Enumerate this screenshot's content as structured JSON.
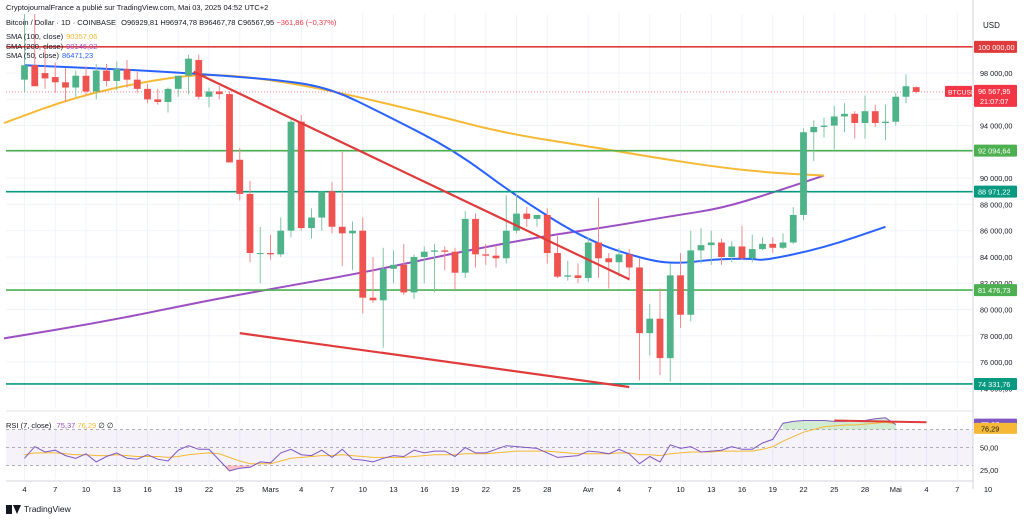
{
  "header": {
    "attribution": "CryptojournalFrance a publié sur TradingView.com, Mai 03, 2025 04:52 UTC+2",
    "symbol_line": "Bitcoin / Dollar · 1D · COINBASE",
    "ohlc": {
      "o": "O96929,81",
      "h": "H96974,78",
      "b": "B96467,78",
      "c": "C96567,95",
      "chg": "−361,86 (−0,37%)"
    }
  },
  "legend": [
    {
      "label": "SMA (100, close)",
      "value": "90357,06",
      "color": "#f5b935"
    },
    {
      "label": "SMA (200, close)",
      "value": "90146,02",
      "color": "#9c4fc3"
    },
    {
      "label": "SMA (50, close)",
      "value": "86471,23",
      "color": "#2962ff"
    }
  ],
  "rsi_legend": {
    "label": "RSI (7, close)",
    "value1": "75,37",
    "value2": "76,29",
    "value3": "∅",
    "value4": "∅"
  },
  "footer": {
    "brand": "TradingView"
  },
  "colors": {
    "up": "#26a69a",
    "upFill": "#4fb38a",
    "down": "#ef5350",
    "sma50": "#2962ff",
    "sma100": "#f5b935",
    "sma200": "#9c4fc3",
    "resistance": "#e03b3b",
    "support": "#4caf50",
    "support2": "#089981"
  },
  "chart_data": {
    "type": "candlestick",
    "currency": "USD",
    "ylim": [
      72500,
      102500
    ],
    "yticks": [
      74000,
      76000,
      78000,
      80000,
      82000,
      84000,
      86000,
      88000,
      90000,
      92000,
      94000,
      96000,
      98000
    ],
    "ytick_labels": [
      "74 000,00",
      "76 000,00",
      "78 000,00",
      "80 000,00",
      "82 000,00",
      "84 000,00",
      "86 000,00",
      "88 000,00",
      "90 000,00",
      "92 000,00",
      "94 000,00",
      "96 000,00",
      "98 000,00"
    ],
    "xticks": [
      {
        "label": "4",
        "i": 0
      },
      {
        "label": "7",
        "i": 3
      },
      {
        "label": "10",
        "i": 6
      },
      {
        "label": "13",
        "i": 9
      },
      {
        "label": "16",
        "i": 12
      },
      {
        "label": "19",
        "i": 15
      },
      {
        "label": "22",
        "i": 18
      },
      {
        "label": "25",
        "i": 21
      },
      {
        "label": "Mars",
        "i": 24
      },
      {
        "label": "4",
        "i": 27
      },
      {
        "label": "7",
        "i": 30
      },
      {
        "label": "10",
        "i": 33
      },
      {
        "label": "13",
        "i": 36
      },
      {
        "label": "16",
        "i": 39
      },
      {
        "label": "19",
        "i": 42
      },
      {
        "label": "22",
        "i": 45
      },
      {
        "label": "25",
        "i": 48
      },
      {
        "label": "28",
        "i": 51
      },
      {
        "label": "Avr",
        "i": 55
      },
      {
        "label": "4",
        "i": 58
      },
      {
        "label": "7",
        "i": 61
      },
      {
        "label": "10",
        "i": 64
      },
      {
        "label": "13",
        "i": 67
      },
      {
        "label": "16",
        "i": 70
      },
      {
        "label": "19",
        "i": 73
      },
      {
        "label": "22",
        "i": 76
      },
      {
        "label": "25",
        "i": 79
      },
      {
        "label": "28",
        "i": 82
      },
      {
        "label": "Mai",
        "i": 85
      },
      {
        "label": "4",
        "i": 88
      },
      {
        "label": "7",
        "i": 91
      },
      {
        "label": "10",
        "i": 94
      }
    ],
    "candles": [
      [
        97500,
        102500,
        96500,
        98600
      ],
      [
        98600,
        102500,
        97000,
        97000
      ],
      [
        98000,
        99800,
        96800,
        97600
      ],
      [
        97700,
        98800,
        96500,
        97300
      ],
      [
        97300,
        98400,
        95800,
        96900
      ],
      [
        96900,
        98200,
        96200,
        97800
      ],
      [
        97800,
        98500,
        96300,
        96600
      ],
      [
        96600,
        98700,
        96000,
        98200
      ],
      [
        98200,
        98700,
        97000,
        97400
      ],
      [
        97400,
        98900,
        96700,
        98300
      ],
      [
        98300,
        99000,
        96900,
        97500
      ],
      [
        97500,
        98100,
        96500,
        96800
      ],
      [
        96800,
        97200,
        95700,
        96000
      ],
      [
        96000,
        96800,
        95600,
        95800
      ],
      [
        95800,
        96900,
        95000,
        96800
      ],
      [
        96800,
        97800,
        96200,
        97800
      ],
      [
        97800,
        99400,
        96400,
        99100
      ],
      [
        99000,
        99400,
        96000,
        96200
      ],
      [
        96200,
        96900,
        95400,
        96600
      ],
      [
        96600,
        97000,
        96000,
        96400
      ],
      [
        96400,
        96600,
        91500,
        91200
      ],
      [
        91400,
        92300,
        88300,
        88800
      ],
      [
        88800,
        89800,
        83600,
        84300
      ],
      [
        84300,
        86300,
        82000,
        84300
      ],
      [
        84300,
        85700,
        83800,
        84200
      ],
      [
        84200,
        87000,
        84000,
        86000
      ],
      [
        86000,
        94500,
        85500,
        94300
      ],
      [
        94300,
        94800,
        86000,
        86200
      ],
      [
        86200,
        87700,
        85400,
        87000
      ],
      [
        87000,
        89000,
        86000,
        89000
      ],
      [
        89000,
        89700,
        85800,
        86300
      ],
      [
        86300,
        92000,
        83300,
        85800
      ],
      [
        85800,
        86700,
        83000,
        86000
      ],
      [
        86000,
        87000,
        79700,
        80900
      ],
      [
        80900,
        84000,
        80500,
        80700
      ],
      [
        80700,
        84700,
        77100,
        83100
      ],
      [
        83100,
        84500,
        82000,
        83400
      ],
      [
        83400,
        85000,
        81100,
        81300
      ],
      [
        81300,
        84200,
        80800,
        84000
      ],
      [
        84000,
        84800,
        82000,
        84400
      ],
      [
        84400,
        85000,
        81300,
        84500
      ],
      [
        84500,
        84800,
        83000,
        84400
      ],
      [
        84400,
        84700,
        81500,
        82800
      ],
      [
        82800,
        87500,
        82400,
        86900
      ],
      [
        86900,
        87300,
        83200,
        84200
      ],
      [
        84200,
        85000,
        83400,
        84100
      ],
      [
        84100,
        84900,
        83200,
        83900
      ],
      [
        83900,
        88700,
        83500,
        86000
      ],
      [
        86000,
        88800,
        85800,
        87300
      ],
      [
        87300,
        87800,
        86300,
        86900
      ],
      [
        86900,
        87200,
        86300,
        87200
      ],
      [
        87200,
        87700,
        83500,
        84300
      ],
      [
        84300,
        85600,
        82400,
        82500
      ],
      [
        82500,
        83700,
        82200,
        82600
      ],
      [
        82600,
        83500,
        82000,
        82400
      ],
      [
        82400,
        85500,
        82100,
        85100
      ],
      [
        85100,
        88500,
        82400,
        83900
      ],
      [
        83900,
        84300,
        81600,
        83600
      ],
      [
        83600,
        84700,
        82500,
        84200
      ],
      [
        84200,
        84600,
        82200,
        83200
      ],
      [
        83200,
        83900,
        74600,
        78200
      ],
      [
        78200,
        80400,
        76500,
        79300
      ],
      [
        79300,
        81600,
        75000,
        76300
      ],
      [
        76300,
        83500,
        74500,
        82600
      ],
      [
        82600,
        84300,
        78600,
        79600
      ],
      [
        79600,
        86000,
        79100,
        84500
      ],
      [
        84500,
        86200,
        83500,
        84900
      ],
      [
        84900,
        86000,
        83400,
        85100
      ],
      [
        85100,
        85400,
        83400,
        84000
      ],
      [
        84000,
        85200,
        83600,
        84800
      ],
      [
        84800,
        86400,
        83800,
        83900
      ],
      [
        83900,
        85700,
        83600,
        84600
      ],
      [
        84600,
        85500,
        84500,
        85000
      ],
      [
        85000,
        85500,
        84300,
        84700
      ],
      [
        84700,
        85800,
        84600,
        85100
      ],
      [
        85100,
        87800,
        85000,
        87200
      ],
      [
        87200,
        93800,
        86800,
        93500
      ],
      [
        93500,
        94400,
        91300,
        93900
      ],
      [
        93900,
        94600,
        93100,
        94000
      ],
      [
        94000,
        95500,
        92200,
        94700
      ],
      [
        94700,
        95700,
        93500,
        94900
      ],
      [
        94900,
        95100,
        93000,
        94200
      ],
      [
        94200,
        96300,
        93000,
        95100
      ],
      [
        95100,
        95600,
        93900,
        94200
      ],
      [
        94200,
        95600,
        92900,
        94300
      ],
      [
        94300,
        96500,
        94000,
        96200
      ],
      [
        96200,
        97900,
        95700,
        97000
      ],
      [
        96929,
        96974,
        96467,
        96568
      ]
    ],
    "sma50": [
      [
        0,
        98600
      ],
      [
        12,
        98200
      ],
      [
        25,
        97500
      ],
      [
        30,
        96800
      ],
      [
        35,
        94900
      ],
      [
        42,
        92100
      ],
      [
        48,
        88600
      ],
      [
        55,
        85200
      ],
      [
        61,
        83700
      ],
      [
        64,
        83500
      ],
      [
        67,
        83800
      ],
      [
        71,
        83900
      ],
      [
        72,
        83700
      ],
      [
        78,
        84700
      ],
      [
        84,
        86300
      ]
    ],
    "sma100": [
      [
        -2,
        94200
      ],
      [
        5,
        96200
      ],
      [
        12,
        97400
      ],
      [
        18,
        98000
      ],
      [
        25,
        97400
      ],
      [
        32,
        96300
      ],
      [
        40,
        94800
      ],
      [
        47,
        93400
      ],
      [
        56,
        92300
      ],
      [
        62,
        91500
      ],
      [
        68,
        90800
      ],
      [
        73,
        90400
      ],
      [
        78,
        90200
      ]
    ],
    "sma200": [
      [
        -2,
        77800
      ],
      [
        8,
        79100
      ],
      [
        18,
        80700
      ],
      [
        25,
        81700
      ],
      [
        33,
        82800
      ],
      [
        42,
        84300
      ],
      [
        50,
        85500
      ],
      [
        57,
        86300
      ],
      [
        63,
        87100
      ],
      [
        68,
        87700
      ],
      [
        73,
        88900
      ],
      [
        78,
        90200
      ]
    ],
    "hlines": [
      {
        "price": 100000,
        "label": "100 000,00",
        "color": "#e03b3b"
      },
      {
        "price": 92094.64,
        "label": "92 094,64",
        "color": "#4caf50"
      },
      {
        "price": 88971.22,
        "label": "88 971,22",
        "color": "#089981"
      },
      {
        "price": 81476.73,
        "label": "81 476,73",
        "color": "#4caf50"
      },
      {
        "price": 74331.76,
        "label": "74 331,76",
        "color": "#089981"
      }
    ],
    "trendlines": [
      {
        "from": [
          16.5,
          98100
        ],
        "to": [
          59,
          82300
        ],
        "color": "#e03b3b"
      },
      {
        "from": [
          21,
          78200
        ],
        "to": [
          59,
          74100
        ],
        "color": "#e03b3b"
      }
    ],
    "last_price": {
      "label": "BTCUSD",
      "price": "96 567,95",
      "countdown": "21:07:07",
      "value": 96568
    },
    "rsi": {
      "levels": [
        70,
        50,
        30
      ],
      "yticks": [
        25,
        50,
        75
      ],
      "ylim": [
        15,
        85
      ],
      "values": [
        38,
        51,
        45,
        47,
        41,
        38,
        43,
        34,
        40,
        44,
        38,
        37,
        42,
        37,
        35,
        47,
        52,
        48,
        48,
        36,
        24,
        27,
        28,
        34,
        33,
        44,
        48,
        42,
        41,
        47,
        39,
        48,
        37,
        36,
        34,
        38,
        41,
        40,
        47,
        44,
        46,
        46,
        40,
        50,
        44,
        44,
        48,
        52,
        51,
        50,
        49,
        44,
        39,
        40,
        41,
        46,
        45,
        43,
        48,
        43,
        32,
        40,
        34,
        53,
        49,
        51,
        45,
        46,
        47,
        51,
        48,
        48,
        55,
        59,
        77,
        79,
        80,
        80,
        80,
        79,
        79,
        80,
        80,
        82,
        83,
        75.4
      ],
      "signal": [
        42,
        44,
        44,
        44,
        43,
        42,
        42,
        41,
        41,
        42,
        41,
        40,
        40,
        40,
        39,
        40,
        42,
        43,
        44,
        43,
        39,
        35,
        32,
        32,
        32,
        35,
        38,
        39,
        40,
        41,
        41,
        42,
        41,
        40,
        39,
        39,
        39,
        39,
        40,
        41,
        42,
        42,
        42,
        43,
        43,
        43,
        44,
        45,
        46,
        46,
        46,
        46,
        45,
        44,
        43,
        43,
        43,
        43,
        44,
        44,
        42,
        42,
        41,
        43,
        44,
        45,
        45,
        45,
        46,
        46,
        46,
        46,
        48,
        51,
        57,
        62,
        67,
        70,
        73,
        74,
        75,
        75,
        76,
        77,
        78,
        76.3
      ],
      "divergence": {
        "from": [
          79,
          80
        ],
        "to": [
          88,
          78
        ]
      }
    }
  }
}
